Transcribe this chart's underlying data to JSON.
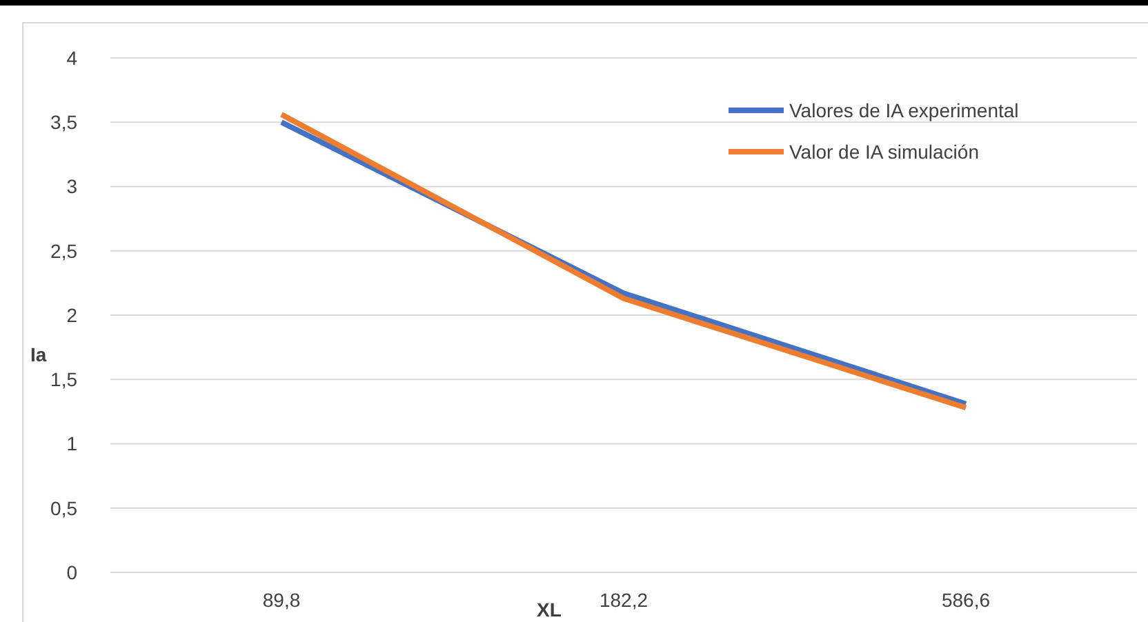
{
  "chart_data": {
    "type": "line",
    "xlabel": "XL",
    "ylabel": "Ia",
    "categories": [
      "89,8",
      "182,2",
      "586,6"
    ],
    "series": [
      {
        "name": "Valores de IA experimental",
        "color": "#4472c4",
        "values": [
          3.5,
          2.17,
          1.31
        ]
      },
      {
        "name": "Valor de IA simulación",
        "color": "#ed7d31",
        "values": [
          3.56,
          2.13,
          1.28
        ]
      }
    ],
    "ylim": [
      0,
      4
    ],
    "yticks": [
      0,
      {
        "value": 0.5,
        "label": "0,5"
      },
      1,
      {
        "value": 1.5,
        "label": "1,5"
      },
      2,
      {
        "value": 2.5,
        "label": "2,5"
      },
      3,
      {
        "value": 3.5,
        "label": "3,5"
      },
      4
    ],
    "grid": "y",
    "legend": "top right",
    "marker": "none",
    "line_style": "solid"
  }
}
